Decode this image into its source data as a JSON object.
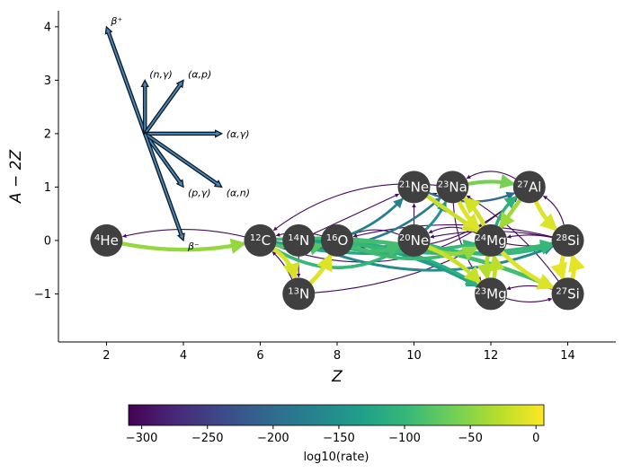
{
  "chart_data": {
    "type": "network",
    "xlabel": "Z",
    "ylabel": "A − 2Z",
    "xlim": [
      0.75,
      15.25
    ],
    "ylim": [
      -1.9,
      4.3
    ],
    "xticks": [
      2,
      4,
      6,
      8,
      10,
      12,
      14
    ],
    "yticks": [
      -1,
      0,
      1,
      2,
      3,
      4
    ],
    "xtick_labels": [
      "2",
      "4",
      "6",
      "8",
      "10",
      "12",
      "14"
    ],
    "ytick_labels": [
      "−1",
      "0",
      "1",
      "2",
      "3",
      "4"
    ],
    "grid": false,
    "nuclei": [
      {
        "id": "he4",
        "mass": "4",
        "symbol": "He",
        "Z": 2,
        "NZ": 0
      },
      {
        "id": "c12",
        "mass": "12",
        "symbol": "C",
        "Z": 6,
        "NZ": 0
      },
      {
        "id": "n13",
        "mass": "13",
        "symbol": "N",
        "Z": 7,
        "NZ": -1
      },
      {
        "id": "n14",
        "mass": "14",
        "symbol": "N",
        "Z": 7,
        "NZ": 0
      },
      {
        "id": "o16",
        "mass": "16",
        "symbol": "O",
        "Z": 8,
        "NZ": 0
      },
      {
        "id": "ne20",
        "mass": "20",
        "symbol": "Ne",
        "Z": 10,
        "NZ": 0
      },
      {
        "id": "ne21",
        "mass": "21",
        "symbol": "Ne",
        "Z": 10,
        "NZ": 1
      },
      {
        "id": "na23",
        "mass": "23",
        "symbol": "Na",
        "Z": 11,
        "NZ": 1
      },
      {
        "id": "mg23",
        "mass": "23",
        "symbol": "Mg",
        "Z": 12,
        "NZ": -1
      },
      {
        "id": "mg24",
        "mass": "24",
        "symbol": "Mg",
        "Z": 12,
        "NZ": 0
      },
      {
        "id": "al27",
        "mass": "27",
        "symbol": "Al",
        "Z": 13,
        "NZ": 1
      },
      {
        "id": "si27",
        "mass": "27",
        "symbol": "Si",
        "Z": 14,
        "NZ": -1
      },
      {
        "id": "si28",
        "mass": "28",
        "symbol": "Si",
        "Z": 14,
        "NZ": 0
      }
    ],
    "rates": [
      {
        "from": "he4",
        "to": "c12",
        "log10_rate": -45,
        "curve": 0.1
      },
      {
        "from": "c12",
        "to": "he4",
        "log10_rate": -300,
        "curve": 0.12
      },
      {
        "from": "c12",
        "to": "n13",
        "log10_rate": -12,
        "curve": -0.2
      },
      {
        "from": "n13",
        "to": "c12",
        "log10_rate": -300,
        "curve": 0.1
      },
      {
        "from": "n13",
        "to": "o16",
        "log10_rate": -10,
        "curve": 0.1
      },
      {
        "from": "n14",
        "to": "n13",
        "log10_rate": -300,
        "curve": 0.0
      },
      {
        "from": "c12",
        "to": "o16",
        "log10_rate": -80,
        "curve": 0.15
      },
      {
        "from": "o16",
        "to": "c12",
        "log10_rate": -300,
        "curve": 0.15
      },
      {
        "from": "c12",
        "to": "ne20",
        "log10_rate": -100,
        "curve": 0.3
      },
      {
        "from": "c12",
        "to": "ne21",
        "log10_rate": -170,
        "curve": 0.25
      },
      {
        "from": "c12",
        "to": "na23",
        "log10_rate": -180,
        "curve": 0.25
      },
      {
        "from": "na23",
        "to": "c12",
        "log10_rate": -300,
        "curve": 0.2
      },
      {
        "from": "c12",
        "to": "mg23",
        "log10_rate": -170,
        "curve": -0.15
      },
      {
        "from": "c12",
        "to": "mg24",
        "log10_rate": -120,
        "curve": 0.1
      },
      {
        "from": "c12",
        "to": "si27",
        "log10_rate": -90,
        "curve": -0.12
      },
      {
        "from": "n14",
        "to": "ne21",
        "log10_rate": -300,
        "curve": 0.0
      },
      {
        "from": "o16",
        "to": "ne20",
        "log10_rate": -90,
        "curve": 0.2
      },
      {
        "from": "ne20",
        "to": "o16",
        "log10_rate": -300,
        "curve": 0.2
      },
      {
        "from": "o16",
        "to": "mg24",
        "log10_rate": -95,
        "curve": 0.2
      },
      {
        "from": "o16",
        "to": "si28",
        "log10_rate": -100,
        "curve": 0.1
      },
      {
        "from": "si28",
        "to": "o16",
        "log10_rate": -300,
        "curve": 0.12
      },
      {
        "from": "o16",
        "to": "si27",
        "log10_rate": -90,
        "curve": -0.1
      },
      {
        "from": "o16",
        "to": "mg23",
        "log10_rate": -110,
        "curve": -0.12
      },
      {
        "from": "n14",
        "to": "mg23",
        "log10_rate": -140,
        "curve": -0.12
      },
      {
        "from": "ne20",
        "to": "ne21",
        "log10_rate": -300,
        "curve": 0.0
      },
      {
        "from": "ne20",
        "to": "mg24",
        "log10_rate": -45,
        "curve": 0.25
      },
      {
        "from": "mg24",
        "to": "ne20",
        "log10_rate": -300,
        "curve": 0.25
      },
      {
        "from": "ne20",
        "to": "na23",
        "log10_rate": -150,
        "curve": 0.1
      },
      {
        "from": "ne20",
        "to": "mg23",
        "log10_rate": -20,
        "curve": -0.1
      },
      {
        "from": "ne20",
        "to": "si28",
        "log10_rate": -100,
        "curve": 0.15
      },
      {
        "from": "ne21",
        "to": "na23",
        "log10_rate": -300,
        "curve": 0.2
      },
      {
        "from": "ne21",
        "to": "mg24",
        "log10_rate": -20,
        "curve": 0.0
      },
      {
        "from": "ne21",
        "to": "al27",
        "log10_rate": -200,
        "curve": 0.2
      },
      {
        "from": "na23",
        "to": "al27",
        "log10_rate": -60,
        "curve": -0.1
      },
      {
        "from": "al27",
        "to": "na23",
        "log10_rate": -300,
        "curve": 0.3
      },
      {
        "from": "na23",
        "to": "mg24",
        "log10_rate": -10,
        "curve": 0.1
      },
      {
        "from": "na23",
        "to": "mg23",
        "log10_rate": -300,
        "curve": 0.15
      },
      {
        "from": "mg24",
        "to": "na23",
        "log10_rate": -15,
        "curve": 0.1
      },
      {
        "from": "mg24",
        "to": "al27",
        "log10_rate": -110,
        "curve": -0.15
      },
      {
        "from": "mg24",
        "to": "si28",
        "log10_rate": -300,
        "curve": 0.1
      },
      {
        "from": "si28",
        "to": "mg24",
        "log10_rate": -300,
        "curve": 0.1
      },
      {
        "from": "mg24",
        "to": "mg23",
        "log10_rate": -30,
        "curve": 0.1
      },
      {
        "from": "mg23",
        "to": "mg24",
        "log10_rate": -25,
        "curve": 0.1
      },
      {
        "from": "mg23",
        "to": "si27",
        "log10_rate": -300,
        "curve": 0.15
      },
      {
        "from": "si27",
        "to": "mg23",
        "log10_rate": -300,
        "curve": 0.15
      },
      {
        "from": "mg24",
        "to": "si27",
        "log10_rate": -10,
        "curve": 0.1
      },
      {
        "from": "mg23",
        "to": "ne20",
        "log10_rate": -300,
        "curve": 0.12
      },
      {
        "from": "al27",
        "to": "si28",
        "log10_rate": -10,
        "curve": 0.1
      },
      {
        "from": "si28",
        "to": "al27",
        "log10_rate": -300,
        "curve": 0.2
      },
      {
        "from": "al27",
        "to": "mg24",
        "log10_rate": -40,
        "curve": 0.0
      },
      {
        "from": "si28",
        "to": "si27",
        "log10_rate": -5,
        "curve": 0.15
      },
      {
        "from": "si27",
        "to": "si28",
        "log10_rate": -5,
        "curve": 0.15
      },
      {
        "from": "si28",
        "to": "ne20",
        "log10_rate": -300,
        "curve": 0.1
      },
      {
        "from": "si27",
        "to": "na23",
        "log10_rate": -300,
        "curve": 0.1
      },
      {
        "from": "n14",
        "to": "si28",
        "log10_rate": -160,
        "curve": 0.2
      },
      {
        "from": "n14",
        "to": "mg24",
        "log10_rate": -100,
        "curve": 0.1
      },
      {
        "from": "n13",
        "to": "mg24",
        "log10_rate": -300,
        "curve": 0.1
      },
      {
        "from": "c12",
        "to": "al27",
        "log10_rate": -300,
        "curve": 0.3
      },
      {
        "from": "o16",
        "to": "al27",
        "log10_rate": -300,
        "curve": 0.25
      },
      {
        "from": "n14",
        "to": "ne20",
        "log10_rate": -300,
        "curve": 0.1
      }
    ],
    "rate_legend": {
      "origin": [
        3,
        2
      ],
      "entries": [
        {
          "label": "β⁺",
          "dZ": -1,
          "dNZ": 2
        },
        {
          "label": "(n,γ)",
          "dZ": 0,
          "dNZ": 1
        },
        {
          "label": "(α,p)",
          "dZ": 1,
          "dNZ": 1
        },
        {
          "label": "(α,γ)",
          "dZ": 2,
          "dNZ": 0
        },
        {
          "label": "(p,γ)",
          "dZ": 1,
          "dNZ": -1
        },
        {
          "label": "(α,n)",
          "dZ": 2,
          "dNZ": -1
        },
        {
          "label": "β⁻",
          "dZ": 1,
          "dNZ": -2
        }
      ]
    },
    "colorbar": {
      "label": "log10(rate)",
      "cmap": "viridis",
      "range": [
        -310,
        6
      ],
      "ticks": [
        -300,
        -250,
        -200,
        -150,
        -100,
        -50,
        0
      ],
      "tick_labels": [
        "−300",
        "−250",
        "−200",
        "−150",
        "−100",
        "−50",
        "0"
      ]
    },
    "colors": {
      "node": "#404040",
      "legend_arrow_fill": "#4a86b5",
      "legend_arrow_edge": "#0d1a26",
      "viridis": [
        "#440154",
        "#482878",
        "#3e4989",
        "#31688e",
        "#26828e",
        "#1f9e89",
        "#35b779",
        "#6ece58",
        "#b5de2b",
        "#fde725"
      ]
    }
  }
}
